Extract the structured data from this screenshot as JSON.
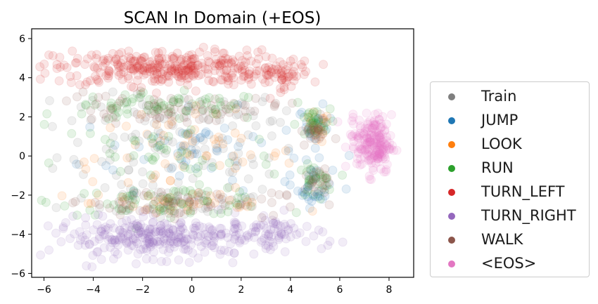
{
  "chart_data": {
    "type": "scatter",
    "title": "SCAN In Domain (+EOS)",
    "xlabel": "",
    "ylabel": "",
    "xlim": [
      -6.5,
      9.0
    ],
    "ylim": [
      -6.2,
      6.5
    ],
    "xticks": [
      -6,
      -4,
      -2,
      0,
      2,
      4,
      6,
      8
    ],
    "yticks": [
      -6,
      -4,
      -2,
      0,
      2,
      4,
      6
    ],
    "xtick_labels": [
      "−6",
      "−4",
      "−2",
      "0",
      "2",
      "4",
      "6",
      "8"
    ],
    "ytick_labels": [
      "−6",
      "−4",
      "−2",
      "0",
      "2",
      "4",
      "6"
    ],
    "grid": false,
    "legend_position": "outside-right",
    "series": [
      {
        "name": "Train",
        "color": "#7f7f7f",
        "clusters": [
          {
            "cx": -0.5,
            "cy": 0.0,
            "sx": 2.5,
            "sy": 1.2,
            "n": 90
          },
          {
            "cx": -0.5,
            "cy": 2.4,
            "sx": 2.3,
            "sy": 0.4,
            "n": 40
          },
          {
            "cx": -0.5,
            "cy": -2.3,
            "sx": 2.3,
            "sy": 0.4,
            "n": 40
          }
        ]
      },
      {
        "name": "JUMP",
        "color": "#1f77b4",
        "clusters": [
          {
            "cx": 0.0,
            "cy": 0.3,
            "sx": 2.3,
            "sy": 1.0,
            "n": 60
          },
          {
            "cx": 5.0,
            "cy": -1.6,
            "sx": 0.35,
            "sy": 0.5,
            "n": 30
          },
          {
            "cx": 5.0,
            "cy": 1.5,
            "sx": 0.35,
            "sy": 0.5,
            "n": 25
          }
        ]
      },
      {
        "name": "LOOK",
        "color": "#ff7f0e",
        "clusters": [
          {
            "cx": -0.5,
            "cy": 0.0,
            "sx": 2.4,
            "sy": 1.1,
            "n": 60
          },
          {
            "cx": 0.0,
            "cy": -2.4,
            "sx": 2.0,
            "sy": 0.35,
            "n": 30
          },
          {
            "cx": 5.0,
            "cy": 1.4,
            "sx": 0.3,
            "sy": 0.4,
            "n": 20
          }
        ]
      },
      {
        "name": "RUN",
        "color": "#2ca02c",
        "clusters": [
          {
            "cx": -1.0,
            "cy": 2.5,
            "sx": 2.2,
            "sy": 0.35,
            "n": 70
          },
          {
            "cx": -1.0,
            "cy": -2.3,
            "sx": 2.2,
            "sy": 0.35,
            "n": 70
          },
          {
            "cx": 5.0,
            "cy": -1.3,
            "sx": 0.35,
            "sy": 0.4,
            "n": 30
          },
          {
            "cx": 4.9,
            "cy": 1.6,
            "sx": 0.35,
            "sy": 0.4,
            "n": 30
          },
          {
            "cx": -1.0,
            "cy": 0.0,
            "sx": 2.3,
            "sy": 1.0,
            "n": 40
          }
        ]
      },
      {
        "name": "TURN_LEFT",
        "color": "#d62728",
        "clusters": [
          {
            "cx": -1.0,
            "cy": 4.5,
            "sx": 2.3,
            "sy": 0.45,
            "n": 320
          },
          {
            "cx": 3.5,
            "cy": 4.2,
            "sx": 0.7,
            "sy": 0.4,
            "n": 50
          }
        ]
      },
      {
        "name": "TURN_RIGHT",
        "color": "#9467bd",
        "clusters": [
          {
            "cx": -1.0,
            "cy": -4.2,
            "sx": 2.4,
            "sy": 0.5,
            "n": 320
          },
          {
            "cx": 3.5,
            "cy": -3.8,
            "sx": 0.8,
            "sy": 0.4,
            "n": 40
          }
        ]
      },
      {
        "name": "WALK",
        "color": "#8c564b",
        "clusters": [
          {
            "cx": -1.0,
            "cy": 2.4,
            "sx": 2.3,
            "sy": 0.35,
            "n": 70
          },
          {
            "cx": -1.0,
            "cy": -2.4,
            "sx": 2.3,
            "sy": 0.35,
            "n": 70
          },
          {
            "cx": 5.0,
            "cy": 1.3,
            "sx": 0.3,
            "sy": 0.4,
            "n": 20
          },
          {
            "cx": 5.0,
            "cy": -1.5,
            "sx": 0.3,
            "sy": 0.4,
            "n": 20
          }
        ]
      },
      {
        "name": "<EOS>",
        "color": "#e377c2",
        "clusters": [
          {
            "cx": 7.4,
            "cy": 0.6,
            "sx": 0.35,
            "sy": 0.75,
            "n": 180
          },
          {
            "cx": 6.8,
            "cy": 1.3,
            "sx": 0.5,
            "sy": 0.5,
            "n": 20
          }
        ]
      }
    ]
  }
}
